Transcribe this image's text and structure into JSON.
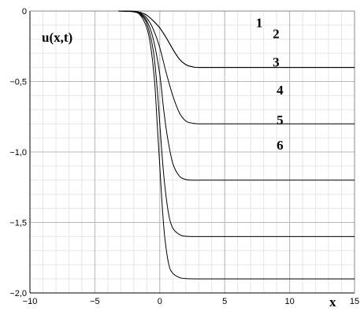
{
  "chart_data": {
    "type": "line",
    "title": "",
    "xlabel": "x",
    "ylabel": "u(x,t)",
    "xlim": [
      -10,
      15
    ],
    "ylim": [
      -2.0,
      0
    ],
    "grid": true,
    "x_ticks": [
      {
        "value": -10,
        "label": "−10"
      },
      {
        "value": -5,
        "label": "−5"
      },
      {
        "value": 0,
        "label": "0"
      },
      {
        "value": 5,
        "label": "5"
      },
      {
        "value": 10,
        "label": "10"
      },
      {
        "value": 15,
        "label": "15"
      }
    ],
    "y_ticks": [
      {
        "value": 0,
        "label": "0"
      },
      {
        "value": -0.5,
        "label": "−0,5"
      },
      {
        "value": -1.0,
        "label": "−1,0"
      },
      {
        "value": -1.5,
        "label": "−1,5"
      },
      {
        "value": -2.0,
        "label": "−2,0"
      }
    ],
    "series": [
      {
        "name": "1",
        "label_x": 7.4,
        "label_y": -0.08,
        "x": [
          -3.2,
          -2.0,
          -1.5,
          -1.0,
          -0.5,
          0,
          0.5,
          1.0,
          1.5,
          2.0,
          2.5,
          3.0,
          5.0,
          10.0,
          15.0
        ],
        "y": [
          0,
          -0.002,
          -0.01,
          -0.03,
          -0.07,
          -0.12,
          -0.19,
          -0.27,
          -0.34,
          -0.38,
          -0.395,
          -0.4,
          -0.4,
          -0.4,
          -0.4
        ]
      },
      {
        "name": "2",
        "label_x": 8.7,
        "label_y": -0.16,
        "x": [
          -3.2,
          -2.0,
          -1.5,
          -1.0,
          -0.5,
          0,
          0.5,
          1.0,
          1.5,
          2.0,
          2.5,
          3.0,
          5.0,
          10.0,
          15.0
        ],
        "y": [
          0,
          -0.002,
          -0.01,
          -0.03,
          -0.07,
          -0.12,
          -0.19,
          -0.27,
          -0.34,
          -0.38,
          -0.395,
          -0.4,
          -0.4,
          -0.4,
          -0.4
        ]
      },
      {
        "name": "3",
        "label_x": 8.7,
        "label_y": -0.36,
        "x": [
          -3.2,
          -2.0,
          -1.5,
          -1.0,
          -0.5,
          0,
          0.5,
          1.0,
          1.5,
          2.0,
          2.5,
          3.0,
          5.0,
          10.0,
          15.0
        ],
        "y": [
          0,
          -0.003,
          -0.015,
          -0.05,
          -0.13,
          -0.26,
          -0.44,
          -0.6,
          -0.72,
          -0.78,
          -0.795,
          -0.8,
          -0.8,
          -0.8,
          -0.8
        ]
      },
      {
        "name": "4",
        "label_x": 9.0,
        "label_y": -0.56,
        "x": [
          -3.2,
          -2.0,
          -1.5,
          -1.0,
          -0.5,
          0,
          0.3,
          0.6,
          1.0,
          1.5,
          2.0,
          2.5,
          3.0,
          5.0,
          10.0,
          15.0
        ],
        "y": [
          0,
          -0.004,
          -0.02,
          -0.07,
          -0.2,
          -0.45,
          -0.7,
          -0.9,
          -1.08,
          -1.17,
          -1.195,
          -1.2,
          -1.2,
          -1.2,
          -1.2,
          -1.2
        ]
      },
      {
        "name": "5",
        "label_x": 9.0,
        "label_y": -0.77,
        "x": [
          -3.2,
          -2.0,
          -1.5,
          -1.0,
          -0.5,
          -0.2,
          0,
          0.2,
          0.4,
          0.7,
          1.0,
          1.5,
          2.0,
          3.0,
          5.0,
          10.0,
          15.0
        ],
        "y": [
          0,
          -0.005,
          -0.025,
          -0.09,
          -0.28,
          -0.55,
          -0.8,
          -1.05,
          -1.25,
          -1.45,
          -1.54,
          -1.585,
          -1.598,
          -1.6,
          -1.6,
          -1.6,
          -1.6
        ]
      },
      {
        "name": "6",
        "label_x": 9.0,
        "label_y": -0.95,
        "x": [
          -3.2,
          -2.0,
          -1.5,
          -1.0,
          -0.7,
          -0.4,
          -0.2,
          0,
          0.2,
          0.4,
          0.7,
          1.0,
          1.5,
          2.0,
          3.0,
          5.0,
          10.0,
          15.0
        ],
        "y": [
          0,
          -0.006,
          -0.03,
          -0.12,
          -0.25,
          -0.5,
          -0.8,
          -1.1,
          -1.4,
          -1.62,
          -1.8,
          -1.86,
          -1.89,
          -1.898,
          -1.9,
          -1.9,
          -1.9,
          -1.9
        ]
      }
    ]
  }
}
